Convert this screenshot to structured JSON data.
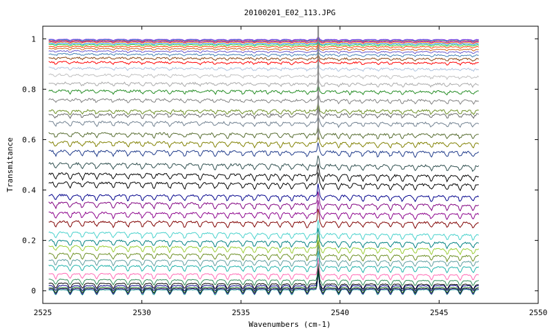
{
  "chart_data": {
    "type": "line",
    "title": "20100201_E02_113.JPG",
    "xlabel": "Wavenumbers (cm-1)",
    "ylabel": "Transmitance",
    "xlim": [
      2525,
      2550
    ],
    "ylim": [
      -0.05,
      1.05
    ],
    "x_range_data": [
      2525.3,
      2547.0
    ],
    "x_ticks": [
      2525,
      2530,
      2535,
      2540,
      2545,
      2550
    ],
    "y_ticks": [
      0,
      0.2,
      0.4,
      0.6,
      0.8,
      1
    ],
    "x_tick_labels": [
      "2525",
      "2530",
      "2535",
      "2540",
      "2545",
      "2550"
    ],
    "y_tick_labels": [
      "0",
      "0.2",
      "0.4",
      "0.6",
      "0.8",
      "1"
    ],
    "spike_wavenumber": 2538.9,
    "series": [
      {
        "color": "#008b8b",
        "start": 0.004,
        "end": 0.005,
        "noise": 0.002
      },
      {
        "color": "#4b0082",
        "start": 0.008,
        "end": 0.008,
        "noise": 0.002
      },
      {
        "color": "#006400",
        "start": 0.012,
        "end": 0.012,
        "noise": 0.002
      },
      {
        "color": "#000080",
        "start": 0.02,
        "end": 0.02,
        "noise": 0.003
      },
      {
        "color": "#000000",
        "start": 0.03,
        "end": 0.025,
        "noise": 0.003
      },
      {
        "color": "#2e8b57",
        "start": 0.045,
        "end": 0.04,
        "noise": 0.003
      },
      {
        "color": "#ff69b4",
        "start": 0.068,
        "end": 0.063,
        "noise": 0.004
      },
      {
        "color": "#20b2aa",
        "start": 0.1,
        "end": 0.093,
        "noise": 0.005
      },
      {
        "color": "#5f9ea0",
        "start": 0.122,
        "end": 0.116,
        "noise": 0.005
      },
      {
        "color": "#6b8e23",
        "start": 0.148,
        "end": 0.138,
        "noise": 0.006
      },
      {
        "color": "#9acd32",
        "start": 0.178,
        "end": 0.165,
        "noise": 0.006
      },
      {
        "color": "#008080",
        "start": 0.2,
        "end": 0.19,
        "noise": 0.006
      },
      {
        "color": "#48d1cc",
        "start": 0.232,
        "end": 0.222,
        "noise": 0.006
      },
      {
        "color": "#800000",
        "start": 0.275,
        "end": 0.27,
        "noise": 0.007
      },
      {
        "color": "#8b008b",
        "start": 0.31,
        "end": 0.305,
        "noise": 0.007
      },
      {
        "color": "#800080",
        "start": 0.35,
        "end": 0.34,
        "noise": 0.007
      },
      {
        "color": "#00008b",
        "start": 0.38,
        "end": 0.375,
        "noise": 0.007
      },
      {
        "color": "#000000",
        "start": 0.43,
        "end": 0.42,
        "noise": 0.008
      },
      {
        "color": "#000000",
        "start": 0.465,
        "end": 0.455,
        "noise": 0.008
      },
      {
        "color": "#2f4f4f",
        "start": 0.505,
        "end": 0.495,
        "noise": 0.008
      },
      {
        "color": "#1e3a8a",
        "start": 0.555,
        "end": 0.55,
        "noise": 0.008
      },
      {
        "color": "#808000",
        "start": 0.59,
        "end": 0.585,
        "noise": 0.008
      },
      {
        "color": "#556b2f",
        "start": 0.625,
        "end": 0.62,
        "noise": 0.008
      },
      {
        "color": "#708090",
        "start": 0.67,
        "end": 0.665,
        "noise": 0.008
      },
      {
        "color": "#696969",
        "start": 0.7,
        "end": 0.7,
        "noise": 0.008
      },
      {
        "color": "#6b8e23",
        "start": 0.715,
        "end": 0.715,
        "noise": 0.008
      },
      {
        "color": "#808080",
        "start": 0.76,
        "end": 0.755,
        "noise": 0.008
      },
      {
        "color": "#228b22",
        "start": 0.795,
        "end": 0.79,
        "noise": 0.008
      },
      {
        "color": "#a9a9a9",
        "start": 0.825,
        "end": 0.82,
        "noise": 0.008
      },
      {
        "color": "#c0c0c0",
        "start": 0.858,
        "end": 0.85,
        "noise": 0.007
      },
      {
        "color": "#b0c4de",
        "start": 0.885,
        "end": 0.88,
        "noise": 0.007
      },
      {
        "color": "#ff0000",
        "start": 0.908,
        "end": 0.905,
        "noise": 0.006
      },
      {
        "color": "#8b4513",
        "start": 0.925,
        "end": 0.92,
        "noise": 0.006
      },
      {
        "color": "#4682b4",
        "start": 0.94,
        "end": 0.935,
        "noise": 0.005
      },
      {
        "color": "#6a5acd",
        "start": 0.952,
        "end": 0.948,
        "noise": 0.004
      },
      {
        "color": "#d2691e",
        "start": 0.962,
        "end": 0.958,
        "noise": 0.004
      },
      {
        "color": "#ff4500",
        "start": 0.97,
        "end": 0.968,
        "noise": 0.003
      },
      {
        "color": "#32cd32",
        "start": 0.977,
        "end": 0.975,
        "noise": 0.003
      },
      {
        "color": "#1e90ff",
        "start": 0.982,
        "end": 0.98,
        "noise": 0.002
      },
      {
        "color": "#ff8c00",
        "start": 0.987,
        "end": 0.985,
        "noise": 0.002
      },
      {
        "color": "#9932cc",
        "start": 0.99,
        "end": 0.988,
        "noise": 0.002
      },
      {
        "color": "#dc143c",
        "start": 0.993,
        "end": 0.992,
        "noise": 0.002
      },
      {
        "color": "#00ced1",
        "start": 0.996,
        "end": 0.995,
        "noise": 0.002
      },
      {
        "color": "#8a2be2",
        "start": 0.998,
        "end": 0.997,
        "noise": 0.001
      }
    ]
  }
}
